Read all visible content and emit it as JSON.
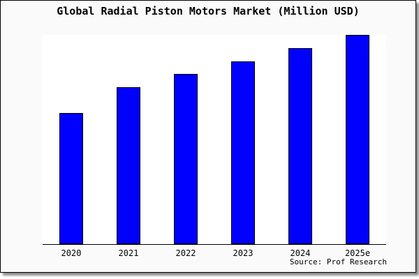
{
  "page": {
    "source": "Source: Prof Research"
  },
  "colors": {
    "bar_fill": "#0000ff",
    "bar_border": "#000000",
    "card_background": "#fafafa",
    "plot_background": "#ffffff",
    "axis": "#000000",
    "text": "#000000"
  },
  "chart_data": {
    "type": "bar",
    "title": "Global Radial Piston Motors Market (Million USD)",
    "categories": [
      "2020",
      "2021",
      "2022",
      "2023",
      "2024",
      "2025e"
    ],
    "values": [
      62.6,
      75.0,
      81.3,
      87.3,
      93.7,
      100
    ],
    "xlabel": "",
    "ylabel": "",
    "ylim": [
      0,
      100
    ],
    "grid": false,
    "legend": false,
    "annotation": "Source: Prof Research"
  }
}
